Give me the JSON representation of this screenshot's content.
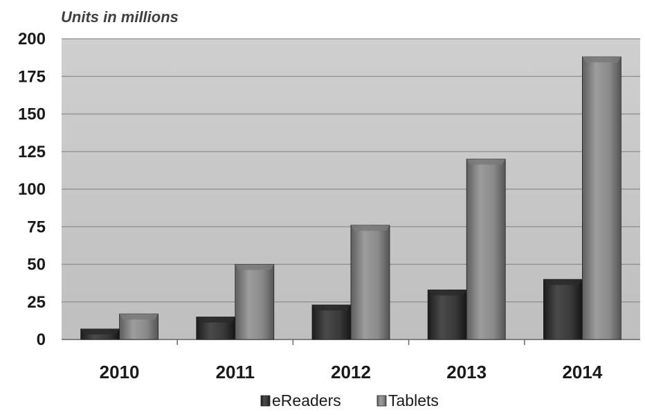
{
  "chart_data": {
    "type": "bar",
    "title": "",
    "ylabel": "Units in millions",
    "xlabel": "",
    "categories": [
      "2010",
      "2011",
      "2012",
      "2013",
      "2014"
    ],
    "series": [
      {
        "name": "eReaders",
        "values": [
          7,
          15,
          23,
          33,
          40
        ],
        "color": "#3a3a3a"
      },
      {
        "name": "Tablets",
        "values": [
          17,
          50,
          76,
          120,
          188
        ],
        "color": "#8a8a8a"
      }
    ],
    "ylim": [
      0,
      200
    ],
    "yticks": [
      "0",
      "25",
      "50",
      "75",
      "100",
      "125",
      "150",
      "175",
      "200"
    ],
    "grid": true,
    "legend_position": "bottom",
    "plot_background": "#c8c8c8"
  }
}
